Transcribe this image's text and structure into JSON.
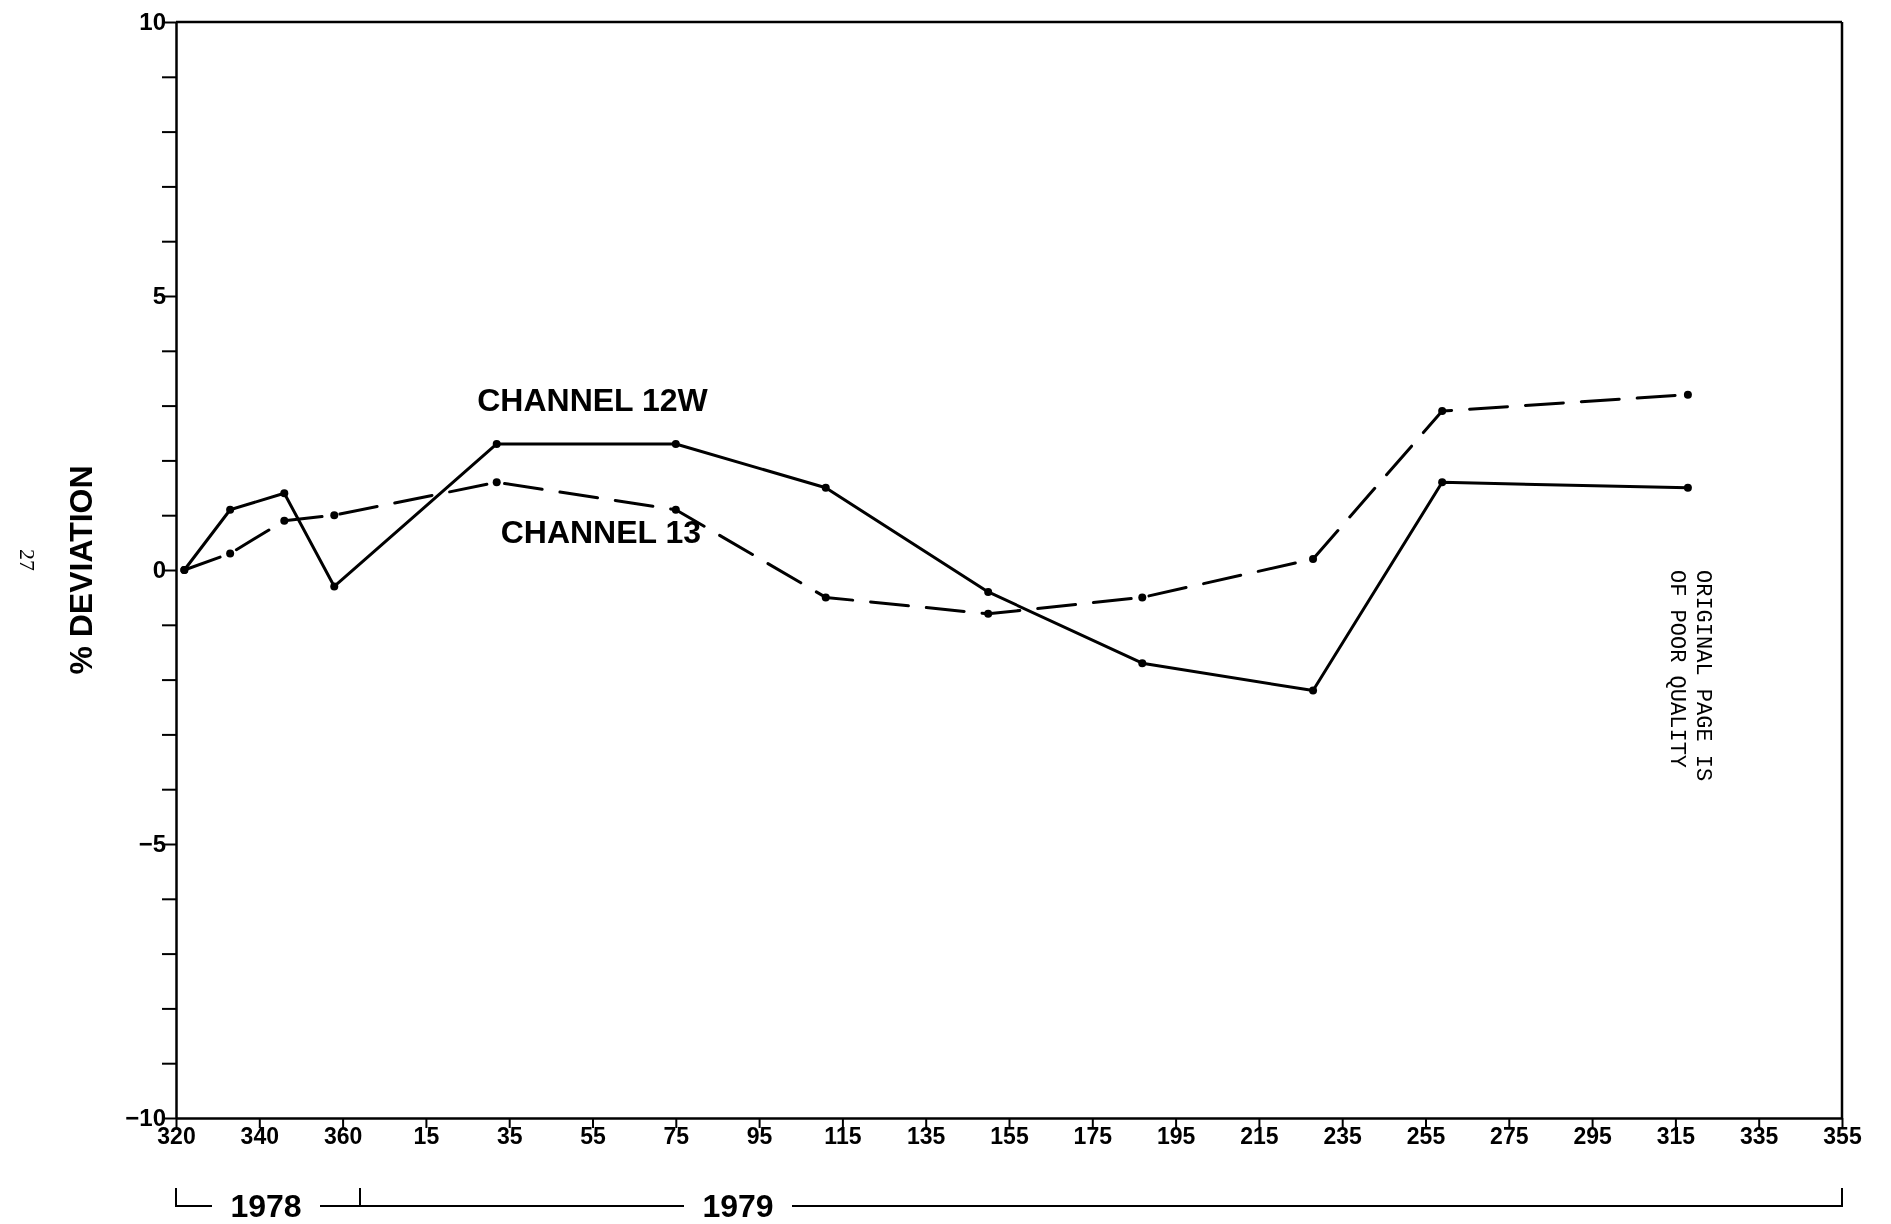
{
  "chart_data": {
    "type": "line",
    "ylabel": "% DEVIATION",
    "xlim": [
      "1978-11-16",
      "1979-12-21"
    ],
    "xticks": [
      {
        "value": "1978-11-16",
        "label": "320"
      },
      {
        "value": "1978-12-06",
        "label": "340"
      },
      {
        "value": "1978-12-26",
        "label": "360"
      },
      {
        "value": "1979-01-15",
        "label": "15"
      },
      {
        "value": "1979-02-04",
        "label": "35"
      },
      {
        "value": "1979-02-24",
        "label": "55"
      },
      {
        "value": "1979-03-16",
        "label": "75"
      },
      {
        "value": "1979-04-05",
        "label": "95"
      },
      {
        "value": "1979-04-25",
        "label": "115"
      },
      {
        "value": "1979-05-15",
        "label": "135"
      },
      {
        "value": "1979-06-04",
        "label": "155"
      },
      {
        "value": "1979-06-24",
        "label": "175"
      },
      {
        "value": "1979-07-14",
        "label": "195"
      },
      {
        "value": "1979-08-03",
        "label": "215"
      },
      {
        "value": "1979-08-23",
        "label": "235"
      },
      {
        "value": "1979-09-12",
        "label": "255"
      },
      {
        "value": "1979-10-02",
        "label": "275"
      },
      {
        "value": "1979-10-22",
        "label": "295"
      },
      {
        "value": "1979-11-11",
        "label": "315"
      },
      {
        "value": "1979-12-01",
        "label": "335"
      },
      {
        "value": "1979-12-21",
        "label": "355"
      }
    ],
    "ylim": [
      -10,
      10
    ],
    "yticks": [
      -10,
      {
        "value": -9,
        "label": null
      },
      {
        "value": -8,
        "label": null
      },
      {
        "value": -7,
        "label": null
      },
      {
        "value": -6,
        "label": null
      },
      -5,
      {
        "value": -4,
        "label": null
      },
      {
        "value": -3,
        "label": null
      },
      {
        "value": -2,
        "label": null
      },
      {
        "value": -1,
        "label": null
      },
      0,
      {
        "value": 1,
        "label": null
      },
      {
        "value": 2,
        "label": null
      },
      {
        "value": 3,
        "label": null
      },
      {
        "value": 4,
        "label": null
      },
      5,
      {
        "value": 6,
        "label": null
      },
      {
        "value": 7,
        "label": null
      },
      {
        "value": 8,
        "label": null
      },
      {
        "value": 9,
        "label": null
      },
      10
    ],
    "x": [
      "1978-11-18",
      "1978-11-29",
      "1978-12-12",
      "1978-12-24",
      "1979-02-01",
      "1979-03-16",
      "1979-04-21",
      "1979-05-30",
      "1979-07-06",
      "1979-08-16",
      "1979-09-16",
      "1979-11-14"
    ],
    "series": [
      {
        "name": "CHANNEL 12W",
        "color": "#000000",
        "line_style": "solid",
        "values": [
          0,
          1.1,
          1.4,
          -0.3,
          2.3,
          2.3,
          1.5,
          -0.4,
          -1.7,
          -2.2,
          1.6,
          1.5
        ]
      },
      {
        "name": "CHANNEL 13",
        "color": "#000000",
        "line_style": "dashed",
        "values": [
          0,
          0.3,
          0.9,
          1.0,
          1.6,
          1.1,
          -0.5,
          -0.8,
          -0.5,
          0.2,
          2.9,
          3.2
        ]
      }
    ],
    "marker": "circle",
    "grid": false,
    "legend": false,
    "annotations": [
      "1978",
      "1979",
      "ORIGINAL PAGE IS OF POOR QUALITY",
      "27"
    ]
  }
}
